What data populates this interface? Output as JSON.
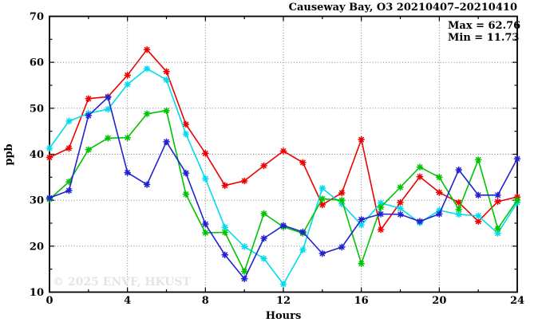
{
  "title": "Causeway Bay, O3 20210407–20210410",
  "stats": {
    "max_label": "Max = 62.76",
    "min_label": "Min = 11.73"
  },
  "watermark": "© 2025  ENVF, HKUST",
  "chart_data": {
    "type": "line",
    "title": "Causeway Bay, O3 20210407–20210410",
    "xlabel": "Hours",
    "ylabel": "ppb",
    "xlim": [
      0,
      24
    ],
    "ylim": [
      10,
      70
    ],
    "x_major_ticks": [
      0,
      4,
      8,
      12,
      16,
      20,
      24
    ],
    "x_minor_step": 2,
    "y_major_ticks": [
      10,
      20,
      30,
      40,
      50,
      60,
      70
    ],
    "y_minor_step": 5,
    "grid": "dotted gridlines at major ticks, ticks mirrored on all four borders",
    "legend": "none",
    "marker": "star",
    "max": 62.76,
    "min": 11.73,
    "x": [
      0,
      1,
      2,
      3,
      4,
      5,
      6,
      7,
      8,
      9,
      10,
      11,
      12,
      13,
      14,
      15,
      16,
      17,
      18,
      19,
      20,
      21,
      22,
      23,
      24
    ],
    "series": [
      {
        "name": "red",
        "color": "#ee0000",
        "values": [
          39.3,
          41.3,
          52.1,
          52.5,
          57.2,
          62.76,
          58.0,
          46.5,
          40.2,
          33.2,
          34.2,
          37.5,
          40.7,
          38.2,
          29.0,
          31.6,
          43.2,
          23.6,
          29.5,
          35.1,
          31.7,
          29.5,
          25.4,
          29.7,
          30.7
        ]
      },
      {
        "name": "cyan",
        "color": "#00dcec",
        "values": [
          41.3,
          47.2,
          48.9,
          49.8,
          55.2,
          58.6,
          56.2,
          44.4,
          34.7,
          24.1,
          19.9,
          17.3,
          11.73,
          19.2,
          32.6,
          29.2,
          24.6,
          29.4,
          28.2,
          25.1,
          27.8,
          26.9,
          26.6,
          22.8,
          29.5
        ]
      },
      {
        "name": "green",
        "color": "#00c400",
        "values": [
          30.2,
          34.0,
          41.0,
          43.5,
          43.6,
          48.8,
          49.5,
          31.3,
          22.9,
          23.0,
          14.5,
          27.1,
          24.2,
          22.8,
          30.3,
          30.0,
          16.2,
          28.5,
          32.8,
          37.2,
          35.0,
          28.0,
          38.8,
          23.8,
          30.0
        ]
      },
      {
        "name": "blue",
        "color": "#2121d2",
        "values": [
          30.5,
          32.1,
          48.4,
          52.4,
          36.0,
          33.4,
          42.7,
          35.9,
          24.8,
          18.1,
          12.9,
          21.7,
          24.5,
          23.1,
          18.4,
          19.8,
          25.8,
          27.0,
          26.9,
          25.4,
          27.0,
          36.6,
          31.1,
          31.1,
          39.0
        ]
      }
    ]
  }
}
